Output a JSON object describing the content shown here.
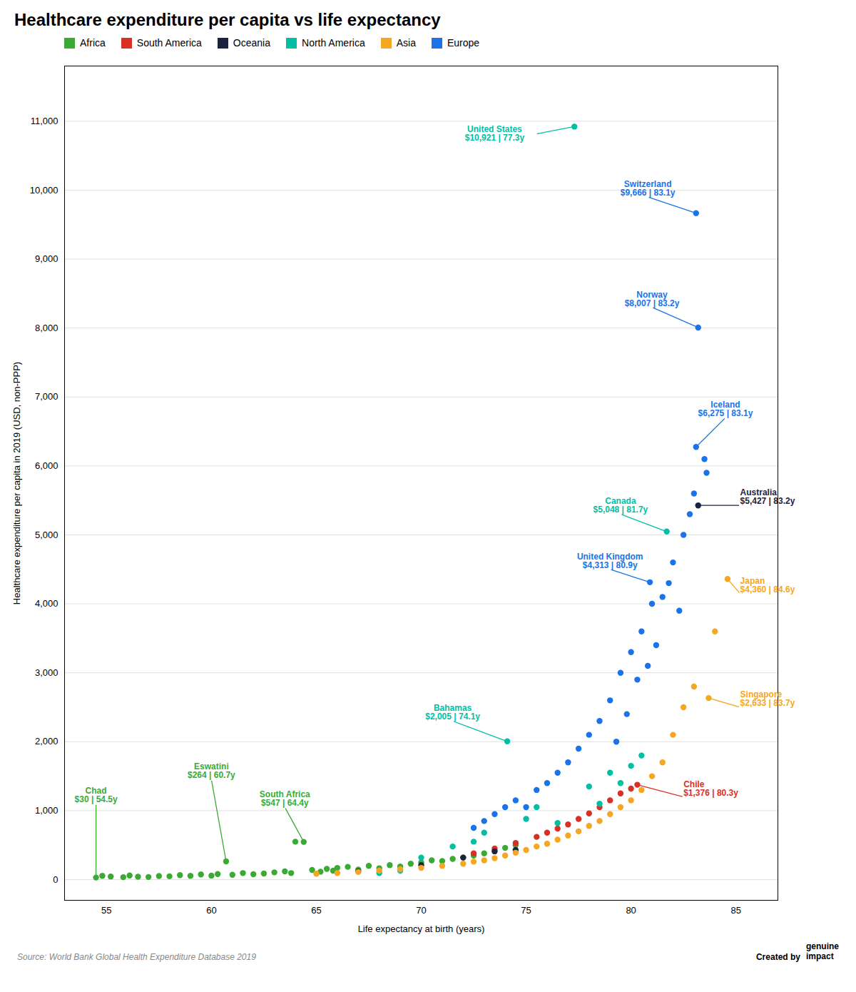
{
  "chart_data": {
    "type": "scatter",
    "title": "Healthcare expenditure per capita vs life expectancy",
    "xlabel": "Life expectancy at birth (years)",
    "ylabel": "Healthcare expenditure per capita in 2019 (USD, non-PPP)",
    "xlim": [
      53,
      87
    ],
    "ylim": [
      -300,
      11800
    ],
    "xticks": [
      55,
      60,
      65,
      70,
      75,
      80,
      85
    ],
    "yticks": [
      0,
      {
        "value": 1000,
        "label": "1,000"
      },
      {
        "value": 2000,
        "label": "2,000"
      },
      {
        "value": 3000,
        "label": "3,000"
      },
      {
        "value": 4000,
        "label": "4,000"
      },
      {
        "value": 5000,
        "label": "5,000"
      },
      {
        "value": 6000,
        "label": "6,000"
      },
      {
        "value": 7000,
        "label": "7,000"
      },
      {
        "value": 8000,
        "label": "8,000"
      },
      {
        "value": 9000,
        "label": "9,000"
      },
      {
        "value": 10000,
        "label": "10,000"
      },
      {
        "value": 11000,
        "label": "11,000"
      }
    ],
    "grid": true,
    "legend": "upper left",
    "series": [
      {
        "name": "Africa",
        "color": "#3aaa35",
        "values": [
          [
            54.5,
            30
          ],
          [
            54.8,
            55
          ],
          [
            55.2,
            45
          ],
          [
            55.8,
            35
          ],
          [
            56.1,
            60
          ],
          [
            56.5,
            42
          ],
          [
            57.0,
            38
          ],
          [
            57.5,
            52
          ],
          [
            58.0,
            48
          ],
          [
            58.5,
            65
          ],
          [
            59.0,
            55
          ],
          [
            59.5,
            75
          ],
          [
            60.0,
            58
          ],
          [
            60.3,
            80
          ],
          [
            60.7,
            264
          ],
          [
            61.0,
            70
          ],
          [
            61.5,
            95
          ],
          [
            62.0,
            78
          ],
          [
            62.5,
            88
          ],
          [
            63.0,
            105
          ],
          [
            63.5,
            120
          ],
          [
            63.8,
            95
          ],
          [
            64.0,
            550
          ],
          [
            64.4,
            547
          ],
          [
            64.8,
            140
          ],
          [
            65.2,
            115
          ],
          [
            65.5,
            155
          ],
          [
            65.8,
            130
          ],
          [
            66.0,
            170
          ],
          [
            66.5,
            185
          ],
          [
            67.0,
            145
          ],
          [
            67.5,
            200
          ],
          [
            68.0,
            165
          ],
          [
            68.5,
            210
          ],
          [
            69.0,
            190
          ],
          [
            69.5,
            230
          ],
          [
            70.0,
            250
          ],
          [
            70.5,
            280
          ],
          [
            71.0,
            270
          ],
          [
            71.5,
            300
          ],
          [
            72.0,
            320
          ],
          [
            72.5,
            350
          ],
          [
            73.0,
            380
          ],
          [
            73.5,
            420
          ],
          [
            74.0,
            460
          ],
          [
            74.5,
            500
          ]
        ]
      },
      {
        "name": "South America",
        "color": "#d93025",
        "values": [
          [
            72.5,
            380
          ],
          [
            73.5,
            450
          ],
          [
            74.5,
            530
          ],
          [
            75.5,
            620
          ],
          [
            76.0,
            680
          ],
          [
            76.5,
            740
          ],
          [
            77.0,
            800
          ],
          [
            77.5,
            880
          ],
          [
            78.0,
            960
          ],
          [
            78.5,
            1050
          ],
          [
            79.0,
            1150
          ],
          [
            79.5,
            1250
          ],
          [
            80.0,
            1320
          ],
          [
            80.3,
            1376
          ]
        ]
      },
      {
        "name": "Oceania",
        "color": "#1a2340",
        "values": [
          [
            67.0,
            120
          ],
          [
            70.0,
            210
          ],
          [
            72.0,
            320
          ],
          [
            73.5,
            410
          ],
          [
            74.5,
            430
          ],
          [
            83.2,
            5427
          ]
        ]
      },
      {
        "name": "North America",
        "color": "#00bfa5",
        "values": [
          [
            68.0,
            95
          ],
          [
            69.0,
            130
          ],
          [
            70.0,
            320
          ],
          [
            71.5,
            480
          ],
          [
            72.5,
            550
          ],
          [
            73.0,
            680
          ],
          [
            74.1,
            2005
          ],
          [
            75.0,
            880
          ],
          [
            75.5,
            1050
          ],
          [
            76.5,
            820
          ],
          [
            77.3,
            10921
          ],
          [
            78.0,
            1350
          ],
          [
            78.5,
            1100
          ],
          [
            79.0,
            1550
          ],
          [
            79.5,
            1400
          ],
          [
            80.0,
            1650
          ],
          [
            80.5,
            1800
          ],
          [
            81.7,
            5048
          ]
        ]
      },
      {
        "name": "Asia",
        "color": "#f5a623",
        "values": [
          [
            65.0,
            85
          ],
          [
            66.0,
            95
          ],
          [
            67.0,
            110
          ],
          [
            68.0,
            130
          ],
          [
            69.0,
            150
          ],
          [
            70.0,
            170
          ],
          [
            71.0,
            200
          ],
          [
            72.0,
            230
          ],
          [
            72.5,
            260
          ],
          [
            73.0,
            280
          ],
          [
            73.5,
            310
          ],
          [
            74.0,
            350
          ],
          [
            74.5,
            390
          ],
          [
            75.0,
            430
          ],
          [
            75.5,
            480
          ],
          [
            76.0,
            520
          ],
          [
            76.5,
            580
          ],
          [
            77.0,
            640
          ],
          [
            77.5,
            700
          ],
          [
            78.0,
            780
          ],
          [
            78.5,
            850
          ],
          [
            79.0,
            950
          ],
          [
            79.5,
            1050
          ],
          [
            80.0,
            1150
          ],
          [
            80.5,
            1300
          ],
          [
            81.0,
            1500
          ],
          [
            81.5,
            1700
          ],
          [
            82.0,
            2100
          ],
          [
            82.5,
            2500
          ],
          [
            83.0,
            2800
          ],
          [
            83.7,
            2633
          ],
          [
            84.0,
            3600
          ],
          [
            84.6,
            4360
          ]
        ]
      },
      {
        "name": "Europe",
        "color": "#1a73e8",
        "values": [
          [
            72.5,
            750
          ],
          [
            73.0,
            850
          ],
          [
            73.5,
            950
          ],
          [
            74.0,
            1050
          ],
          [
            74.5,
            1150
          ],
          [
            75.0,
            1050
          ],
          [
            75.5,
            1300
          ],
          [
            76.0,
            1400
          ],
          [
            76.5,
            1550
          ],
          [
            77.0,
            1700
          ],
          [
            77.5,
            1900
          ],
          [
            78.0,
            2100
          ],
          [
            78.5,
            2300
          ],
          [
            79.0,
            2600
          ],
          [
            79.3,
            2000
          ],
          [
            79.5,
            3000
          ],
          [
            79.8,
            2400
          ],
          [
            80.0,
            3300
          ],
          [
            80.3,
            2900
          ],
          [
            80.5,
            3600
          ],
          [
            80.8,
            3100
          ],
          [
            80.9,
            4313
          ],
          [
            81.0,
            4000
          ],
          [
            81.2,
            3400
          ],
          [
            81.5,
            4100
          ],
          [
            81.8,
            4300
          ],
          [
            82.0,
            4600
          ],
          [
            82.3,
            3900
          ],
          [
            82.5,
            5000
          ],
          [
            82.8,
            5300
          ],
          [
            83.0,
            5600
          ],
          [
            83.1,
            6275
          ],
          [
            83.1,
            9666
          ],
          [
            83.2,
            8007
          ],
          [
            83.5,
            6100
          ],
          [
            83.6,
            5900
          ]
        ]
      }
    ],
    "annotations": [
      {
        "text": "United States\n$10,921 | 77.3y",
        "x": 77.3,
        "y": 10921,
        "text_x": 73.5,
        "text_y": 10700,
        "color": "#00bfa5",
        "align": "center"
      },
      {
        "text": "Switzerland\n$9,666 | 83.1y",
        "x": 83.1,
        "y": 9666,
        "text_x": 80.8,
        "text_y": 9900,
        "color": "#1a73e8",
        "align": "center"
      },
      {
        "text": "Norway\n$8,007 | 83.2y",
        "x": 83.2,
        "y": 8007,
        "text_x": 81.0,
        "text_y": 8300,
        "color": "#1a73e8",
        "align": "center"
      },
      {
        "text": "Iceland\n$6,275 | 83.1y",
        "x": 83.1,
        "y": 6275,
        "text_x": 84.5,
        "text_y": 6700,
        "color": "#1a73e8",
        "align": "center"
      },
      {
        "text": "Canada\n$5,048 | 81.7y",
        "x": 81.7,
        "y": 5048,
        "text_x": 79.5,
        "text_y": 5300,
        "color": "#00bfa5",
        "align": "center"
      },
      {
        "text": "Australia\n$5,427 | 83.2y",
        "x": 83.2,
        "y": 5427,
        "text_x": 85.2,
        "text_y": 5427,
        "color": "#1a2340",
        "align": "left"
      },
      {
        "text": "United Kingdom\n$4,313 | 80.9y",
        "x": 80.9,
        "y": 4313,
        "text_x": 79.0,
        "text_y": 4500,
        "color": "#1a73e8",
        "align": "center"
      },
      {
        "text": "Japan\n$4,360 | 84.6y",
        "x": 84.6,
        "y": 4360,
        "text_x": 85.2,
        "text_y": 4150,
        "color": "#f5a623",
        "align": "left"
      },
      {
        "text": "Singapore\n$2,633 | 83.7y",
        "x": 83.7,
        "y": 2633,
        "text_x": 85.2,
        "text_y": 2500,
        "color": "#f5a623",
        "align": "left"
      },
      {
        "text": "Bahamas\n$2,005 | 74.1y",
        "x": 74.1,
        "y": 2005,
        "text_x": 71.5,
        "text_y": 2300,
        "color": "#00bfa5",
        "align": "center"
      },
      {
        "text": "Chile\n$1,376 | 80.3y",
        "x": 80.3,
        "y": 1376,
        "text_x": 82.5,
        "text_y": 1200,
        "color": "#d93025",
        "align": "left"
      },
      {
        "text": "South Africa\n$547 | 64.4y",
        "x": 64.4,
        "y": 547,
        "text_x": 63.5,
        "text_y": 1050,
        "color": "#3aaa35",
        "align": "center"
      },
      {
        "text": "Eswatini\n$264 | 60.7y",
        "x": 60.7,
        "y": 264,
        "text_x": 60.0,
        "text_y": 1450,
        "color": "#3aaa35",
        "align": "center"
      },
      {
        "text": "Chad\n$30 | 54.5y",
        "x": 54.5,
        "y": 30,
        "text_x": 54.5,
        "text_y": 1100,
        "color": "#3aaa35",
        "align": "center"
      }
    ],
    "source": "Source: World Bank Global Health Expenditure Database 2019",
    "credit": "Created by",
    "brand": "genuine\nimpact"
  }
}
